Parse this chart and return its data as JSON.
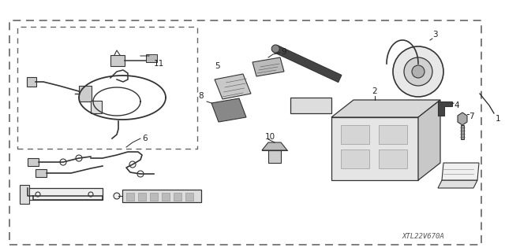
{
  "bg_color": "#ffffff",
  "watermark": "XTL22V670A",
  "dashed_color": "#666666",
  "text_color": "#222222",
  "part_color": "#333333",
  "light_gray": "#cccccc",
  "mid_gray": "#999999",
  "dark_gray": "#555555"
}
